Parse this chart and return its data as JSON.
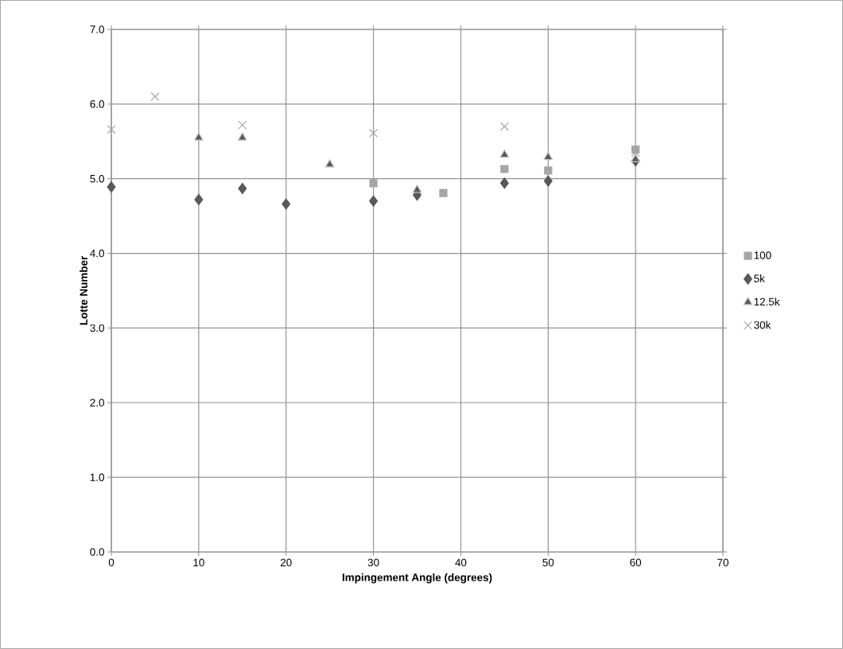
{
  "chart_data": {
    "type": "scatter",
    "xlabel": "Impingement Angle (degrees)",
    "ylabel": "Lotte Number",
    "xlim": [
      0,
      70
    ],
    "xticks": [
      0,
      10,
      20,
      30,
      40,
      50,
      60,
      70
    ],
    "ylim": [
      0,
      7
    ],
    "yticks": [
      {
        "value": 0,
        "label": "0.0"
      },
      {
        "value": 1,
        "label": "1.0"
      },
      {
        "value": 2,
        "label": "2.0"
      },
      {
        "value": 3,
        "label": "3.0"
      },
      {
        "value": 4,
        "label": "4.0"
      },
      {
        "value": 5,
        "label": "5.0"
      },
      {
        "value": 6,
        "label": "6.0"
      },
      {
        "value": 7,
        "label": "7.0"
      }
    ],
    "grid": true,
    "legend": "right",
    "series": [
      {
        "name": "100",
        "color": "#a6a6a6",
        "marker": "square",
        "x": [
          30,
          38,
          45,
          50,
          60
        ],
        "values": [
          4.94,
          4.81,
          5.13,
          5.11,
          5.39
        ]
      },
      {
        "name": "5k",
        "color": "#595959",
        "marker": "diamond",
        "x": [
          0,
          10,
          15,
          20,
          30,
          35,
          45,
          50,
          60
        ],
        "values": [
          4.89,
          4.72,
          4.87,
          4.66,
          4.7,
          4.78,
          4.94,
          4.97,
          5.24
        ]
      },
      {
        "name": "12.5k",
        "color": "#595959",
        "marker": "triangle",
        "x": [
          10,
          15,
          25,
          35,
          45,
          50,
          60
        ],
        "values": [
          5.55,
          5.55,
          5.19,
          4.85,
          5.32,
          5.29,
          5.26
        ]
      },
      {
        "name": "30k",
        "color": "#a6a6a6",
        "marker": "cross",
        "x": [
          0,
          5,
          15,
          30,
          45,
          60
        ],
        "values": [
          5.66,
          6.1,
          5.72,
          5.61,
          5.7,
          5.35
        ]
      }
    ]
  }
}
